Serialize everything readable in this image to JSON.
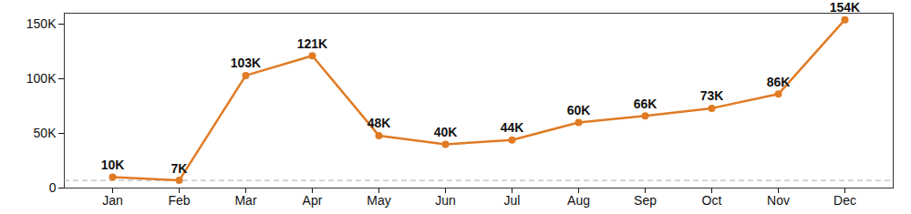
{
  "chart_data": {
    "type": "line",
    "categories": [
      "Jan",
      "Feb",
      "Mar",
      "Apr",
      "May",
      "Jun",
      "Jul",
      "Aug",
      "Sep",
      "Oct",
      "Nov",
      "Dec"
    ],
    "values": [
      10000,
      7000,
      103000,
      121000,
      48000,
      40000,
      44000,
      60000,
      66000,
      73000,
      86000,
      154000
    ],
    "value_labels": [
      "10K",
      "7K",
      "103K",
      "121K",
      "48K",
      "40K",
      "44K",
      "60K",
      "66K",
      "73K",
      "86K",
      "154K"
    ],
    "color": "#e07b24",
    "marker": "circle",
    "data_labels": true,
    "reference_line": 7000,
    "ylim": [
      0,
      160000
    ],
    "yticks": [
      0,
      {
        "value": 50000,
        "label": "50K"
      },
      {
        "value": 100000,
        "label": "100K"
      },
      {
        "value": 150000,
        "label": "150K"
      }
    ],
    "grid": false
  }
}
